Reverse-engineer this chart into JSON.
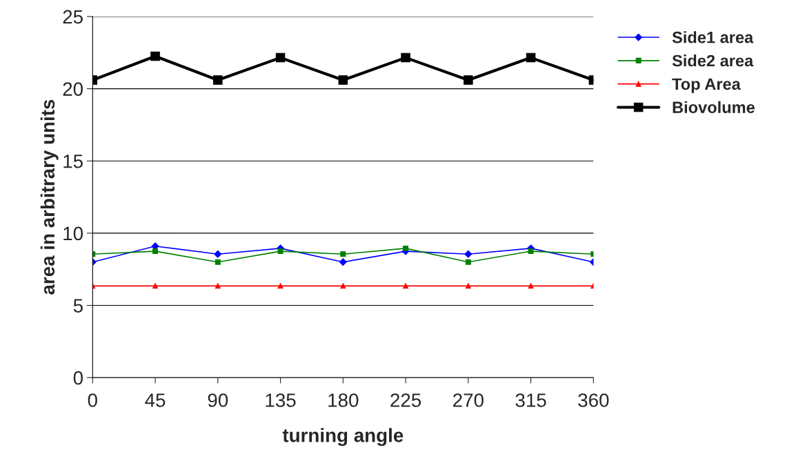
{
  "chart_data": {
    "type": "line",
    "xlabel": "turning angle",
    "ylabel": "area in arbitrary units",
    "x": [
      0,
      45,
      90,
      135,
      180,
      225,
      270,
      315,
      360
    ],
    "xlim": [
      0,
      360
    ],
    "xticks": [
      0,
      45,
      90,
      135,
      180,
      225,
      270,
      315,
      360
    ],
    "ylim": [
      0,
      25
    ],
    "yticks": [
      0,
      5,
      10,
      15,
      20,
      25
    ],
    "grid": "y",
    "legend": "top right",
    "series": [
      {
        "name": "Side1 area",
        "color": "#0000ff",
        "marker": "diamond",
        "values": [
          8.0,
          9.1,
          8.55,
          8.95,
          8.0,
          8.75,
          8.55,
          8.95,
          8.0
        ]
      },
      {
        "name": "Side2 area",
        "color": "#008000",
        "marker": "square",
        "values": [
          8.55,
          8.75,
          8.0,
          8.75,
          8.55,
          8.95,
          8.0,
          8.75,
          8.55
        ]
      },
      {
        "name": "Top Area",
        "color": "#ff0000",
        "marker": "triangle",
        "values": [
          6.35,
          6.35,
          6.35,
          6.35,
          6.35,
          6.35,
          6.35,
          6.35,
          6.35
        ]
      },
      {
        "name": "Biovolume",
        "color": "#000000",
        "marker": "square",
        "values": [
          20.6,
          22.25,
          20.6,
          22.15,
          20.6,
          22.15,
          20.6,
          22.15,
          20.6
        ]
      }
    ]
  }
}
